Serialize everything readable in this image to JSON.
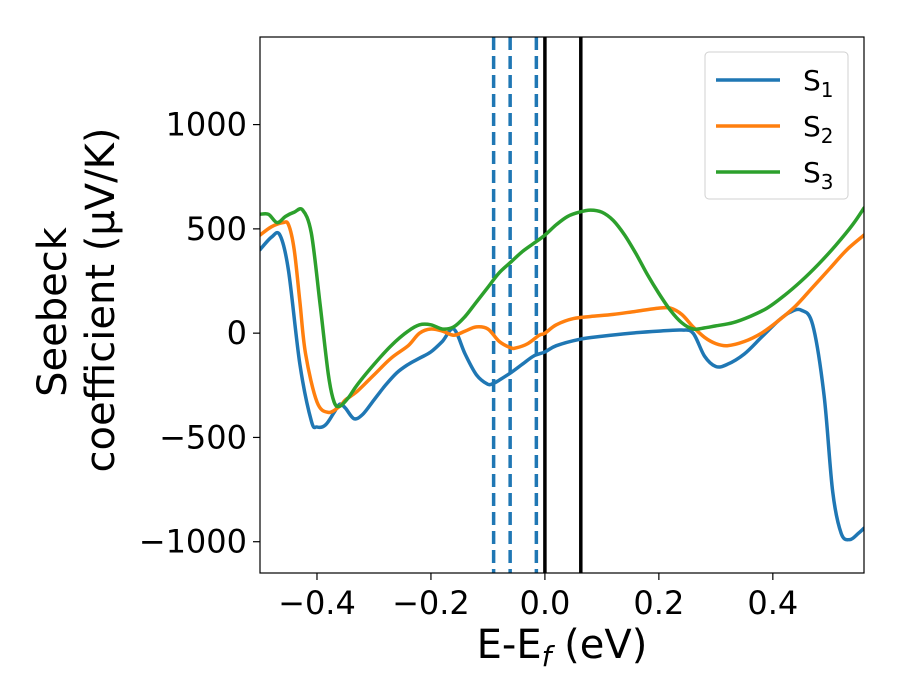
{
  "chart_data": {
    "type": "line",
    "xlabel": "E-E",
    "xlabel_sub": "f",
    "xlabel_unit": " (eV)",
    "ylabel_line1": "Seebeck",
    "ylabel_line2": "coefficient  (μV/K)",
    "xlim": [
      -0.5,
      0.56
    ],
    "ylim": [
      -1150,
      1420
    ],
    "xticks": [
      -0.4,
      -0.2,
      0.0,
      0.2,
      0.4
    ],
    "xtick_labels": [
      "−0.4",
      "−0.2",
      "0.0",
      "0.2",
      "0.4"
    ],
    "yticks": [
      -1000,
      -500,
      0,
      500,
      1000
    ],
    "ytick_labels": [
      "−1000",
      "−500",
      "0",
      "500",
      "1000"
    ],
    "legend_position": "top-right",
    "series": [
      {
        "name": "S",
        "sub": "1",
        "color": "#1f77b4",
        "x": [
          -0.5,
          -0.48,
          -0.465,
          -0.45,
          -0.43,
          -0.41,
          -0.4,
          -0.385,
          -0.37,
          -0.36,
          -0.35,
          -0.335,
          -0.32,
          -0.3,
          -0.28,
          -0.26,
          -0.24,
          -0.22,
          -0.2,
          -0.18,
          -0.16,
          -0.14,
          -0.12,
          -0.1,
          -0.09,
          -0.08,
          -0.06,
          -0.04,
          -0.02,
          0.0,
          0.02,
          0.06,
          0.1,
          0.15,
          0.2,
          0.24,
          0.26,
          0.28,
          0.3,
          0.32,
          0.35,
          0.38,
          0.41,
          0.43,
          0.45,
          0.47,
          0.49,
          0.505,
          0.52,
          0.535,
          0.55,
          0.56
        ],
        "y": [
          400,
          460,
          470,
          300,
          -150,
          -420,
          -450,
          -440,
          -380,
          -340,
          -360,
          -410,
          -390,
          -320,
          -250,
          -190,
          -150,
          -120,
          -90,
          -40,
          20,
          -100,
          -200,
          -245,
          -240,
          -225,
          -190,
          -150,
          -110,
          -90,
          -60,
          -30,
          -15,
          0,
          10,
          15,
          0,
          -110,
          -160,
          -150,
          -100,
          -20,
          60,
          100,
          110,
          40,
          -300,
          -760,
          -960,
          -990,
          -960,
          -935
        ]
      },
      {
        "name": "S",
        "sub": "2",
        "color": "#ff7f0e",
        "x": [
          -0.5,
          -0.48,
          -0.46,
          -0.45,
          -0.44,
          -0.43,
          -0.42,
          -0.4,
          -0.38,
          -0.36,
          -0.35,
          -0.33,
          -0.3,
          -0.27,
          -0.24,
          -0.22,
          -0.2,
          -0.18,
          -0.16,
          -0.14,
          -0.12,
          -0.1,
          -0.08,
          -0.06,
          -0.05,
          -0.03,
          -0.01,
          0.0,
          0.02,
          0.05,
          0.08,
          0.12,
          0.16,
          0.2,
          0.22,
          0.24,
          0.26,
          0.28,
          0.3,
          0.32,
          0.35,
          0.38,
          0.41,
          0.44,
          0.47,
          0.5,
          0.53,
          0.56
        ],
        "y": [
          470,
          510,
          530,
          520,
          400,
          150,
          -100,
          -330,
          -380,
          -350,
          -320,
          -280,
          -200,
          -120,
          -60,
          0,
          20,
          10,
          -10,
          10,
          30,
          20,
          -40,
          -70,
          -70,
          -50,
          -10,
          0,
          40,
          70,
          80,
          90,
          105,
          120,
          120,
          90,
          30,
          -20,
          -50,
          -60,
          -40,
          0,
          60,
          130,
          220,
          310,
          400,
          470
        ]
      },
      {
        "name": "S",
        "sub": "3",
        "color": "#2ca02c",
        "x": [
          -0.5,
          -0.485,
          -0.47,
          -0.455,
          -0.44,
          -0.425,
          -0.41,
          -0.395,
          -0.38,
          -0.37,
          -0.36,
          -0.345,
          -0.33,
          -0.3,
          -0.27,
          -0.24,
          -0.22,
          -0.2,
          -0.18,
          -0.16,
          -0.14,
          -0.12,
          -0.1,
          -0.08,
          -0.06,
          -0.04,
          -0.02,
          0.0,
          0.02,
          0.04,
          0.06,
          0.08,
          0.1,
          0.12,
          0.14,
          0.16,
          0.18,
          0.2,
          0.22,
          0.24,
          0.26,
          0.28,
          0.3,
          0.33,
          0.36,
          0.39,
          0.42,
          0.45,
          0.48,
          0.51,
          0.54,
          0.56
        ],
        "y": [
          570,
          570,
          530,
          560,
          580,
          590,
          480,
          150,
          -200,
          -330,
          -350,
          -310,
          -250,
          -150,
          -60,
          10,
          40,
          40,
          20,
          30,
          80,
          150,
          220,
          290,
          340,
          390,
          430,
          470,
          520,
          560,
          580,
          590,
          580,
          540,
          470,
          380,
          280,
          190,
          110,
          50,
          20,
          25,
          35,
          50,
          80,
          120,
          180,
          250,
          330,
          420,
          520,
          600
        ]
      }
    ],
    "vlines": [
      {
        "x": -0.09,
        "style": "dashed",
        "color": "#1f77b4"
      },
      {
        "x": -0.061,
        "style": "dashed",
        "color": "#1f77b4"
      },
      {
        "x": -0.015,
        "style": "dashed",
        "color": "#1f77b4"
      },
      {
        "x": 0.0,
        "style": "solid",
        "color": "#000000"
      },
      {
        "x": 0.063,
        "style": "solid",
        "color": "#000000"
      }
    ]
  }
}
